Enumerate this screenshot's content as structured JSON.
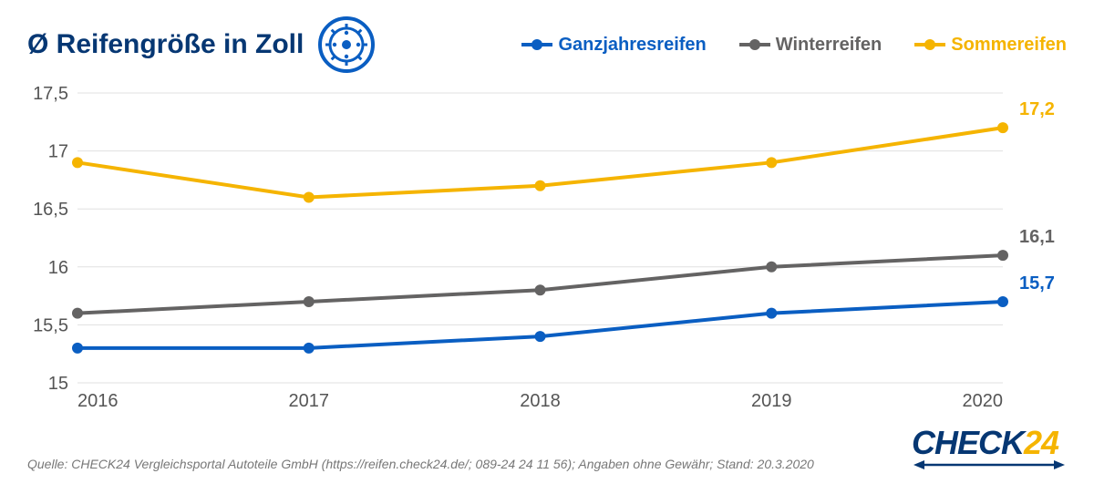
{
  "title": "Ø Reifengröße in Zoll",
  "title_color": "#063773",
  "icon_name": "wheel-icon",
  "icon_color": "#0a5ec2",
  "legend": {
    "items": [
      {
        "key": "ganzjahres",
        "label": "Ganzjahresreifen",
        "color": "#0a5ec2"
      },
      {
        "key": "winter",
        "label": "Winterreifen",
        "color": "#646363"
      },
      {
        "key": "sommer",
        "label": "Sommereifen",
        "color": "#f5b400"
      }
    ],
    "label_fontsize": 20
  },
  "chart": {
    "type": "line",
    "x_categories": [
      "2016",
      "2017",
      "2018",
      "2019",
      "2020"
    ],
    "ylim": [
      15,
      17.5
    ],
    "ytick_step": 0.5,
    "ytick_labels": [
      "15",
      "15,5",
      "16",
      "16,5",
      "17",
      "17,5"
    ],
    "grid_color": "#e0e0e0",
    "axis_text_color": "#555555",
    "background_color": "#ffffff",
    "line_width": 4,
    "marker_radius": 6,
    "axis_fontsize": 20,
    "series": [
      {
        "key": "sommer",
        "color": "#f5b400",
        "values": [
          16.9,
          16.6,
          16.7,
          16.9,
          17.2
        ],
        "end_label": "17,2"
      },
      {
        "key": "winter",
        "color": "#646363",
        "values": [
          15.6,
          15.7,
          15.8,
          16.0,
          16.1
        ],
        "end_label": "16,1"
      },
      {
        "key": "ganzjahres",
        "color": "#0a5ec2",
        "values": [
          15.3,
          15.3,
          15.4,
          15.6,
          15.7
        ],
        "end_label": "15,7"
      }
    ]
  },
  "source": "Quelle: CHECK24 Vergleichsportal Autoteile GmbH (https://reifen.check24.de/; 089-24 24 11 56); Angaben ohne Gewähr; Stand: 20.3.2020",
  "brand": {
    "part1": "CHECK",
    "part2": "24",
    "color1": "#063773",
    "color2": "#f5b400"
  }
}
